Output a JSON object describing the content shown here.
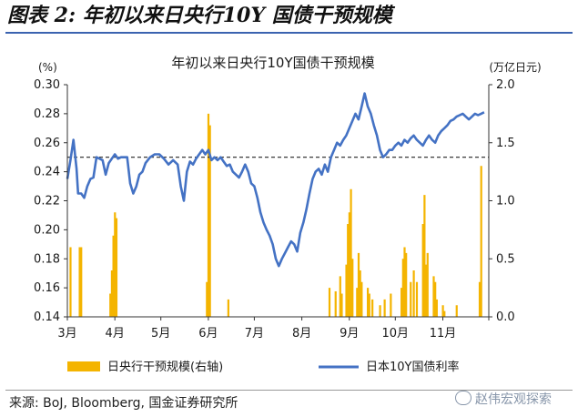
{
  "figure": {
    "title": "图表 2: 年初以来日央行10Y 国债干预规模",
    "source": "来源: BoJ, Bloomberg, 国金证券研究所",
    "watermark": "赵伟宏观探索"
  },
  "chart_data": {
    "type": "bar+line",
    "title": "年初以来日央行10Y国债干预规模",
    "left_unit": "(%)",
    "right_unit": "(万亿日元)",
    "x_tick_labels": [
      "3月",
      "4月",
      "5月",
      "6月",
      "7月",
      "8月",
      "9月",
      "10月",
      "11月"
    ],
    "left_axis": {
      "min": 0.14,
      "max": 0.3,
      "ticks": [
        "0.14",
        "0.16",
        "0.18",
        "0.20",
        "0.22",
        "0.24",
        "0.26",
        "0.28",
        "0.30"
      ]
    },
    "right_axis": {
      "min": 0.0,
      "max": 2.0,
      "ticks": [
        "0.0",
        "0.5",
        "1.0",
        "1.5",
        "2.0"
      ]
    },
    "reference_line": 0.25,
    "grid": false,
    "legend_position": "bottom",
    "colors": {
      "bar": "#f4b400",
      "line": "#4472c4",
      "reference": "#222222"
    },
    "bar_series": {
      "name": "日央行干预规模(右轴)",
      "axis": "right",
      "x": [
        "2021-03-03",
        "2021-03-09",
        "2021-03-10",
        "2021-03-29",
        "2021-03-30",
        "2021-03-31",
        "2021-04-01",
        "2021-04-02",
        "2021-05-31",
        "2021-06-01",
        "2021-06-02",
        "2021-06-14",
        "2021-08-19",
        "2021-08-23",
        "2021-08-26",
        "2021-08-27",
        "2021-08-30",
        "2021-08-31",
        "2021-09-01",
        "2021-09-02",
        "2021-09-03",
        "2021-09-06",
        "2021-09-07",
        "2021-09-08",
        "2021-09-09",
        "2021-09-13",
        "2021-09-14",
        "2021-09-16",
        "2021-09-21",
        "2021-09-24",
        "2021-09-28",
        "2021-10-05",
        "2021-10-06",
        "2021-10-07",
        "2021-10-08",
        "2021-10-11",
        "2021-10-13",
        "2021-10-15",
        "2021-10-19",
        "2021-10-20",
        "2021-10-21",
        "2021-10-22",
        "2021-10-26",
        "2021-10-27",
        "2021-10-28",
        "2021-11-01",
        "2021-11-02",
        "2021-11-10",
        "2021-11-25",
        "2021-11-26"
      ],
      "y": [
        0.6,
        0.6,
        0.6,
        0.2,
        0.4,
        0.7,
        0.9,
        0.85,
        0.3,
        1.75,
        1.65,
        0.15,
        0.25,
        0.22,
        0.35,
        0.2,
        0.45,
        0.8,
        0.9,
        1.1,
        0.5,
        0.25,
        0.55,
        0.4,
        0.3,
        0.25,
        0.2,
        0.15,
        0.1,
        0.15,
        0.2,
        0.25,
        0.5,
        0.6,
        0.55,
        0.3,
        0.4,
        0.3,
        0.8,
        1.05,
        0.45,
        0.55,
        0.35,
        0.3,
        0.15,
        0.1,
        0.05,
        0.1,
        0.3,
        1.3
      ]
    },
    "line_series": {
      "name": "日本10Y国债利率",
      "axis": "left",
      "points": [
        [
          "2021-03-01",
          0.235
        ],
        [
          "2021-03-03",
          0.248
        ],
        [
          "2021-03-05",
          0.262
        ],
        [
          "2021-03-07",
          0.242
        ],
        [
          "2021-03-08",
          0.225
        ],
        [
          "2021-03-10",
          0.225
        ],
        [
          "2021-03-12",
          0.222
        ],
        [
          "2021-03-14",
          0.23
        ],
        [
          "2021-03-16",
          0.235
        ],
        [
          "2021-03-18",
          0.236
        ],
        [
          "2021-03-20",
          0.25
        ],
        [
          "2021-03-22",
          0.249
        ],
        [
          "2021-03-24",
          0.248
        ],
        [
          "2021-03-26",
          0.238
        ],
        [
          "2021-03-28",
          0.246
        ],
        [
          "2021-03-30",
          0.249
        ],
        [
          "2021-04-01",
          0.252
        ],
        [
          "2021-04-03",
          0.249
        ],
        [
          "2021-04-05",
          0.25
        ],
        [
          "2021-04-07",
          0.25
        ],
        [
          "2021-04-09",
          0.25
        ],
        [
          "2021-04-11",
          0.232
        ],
        [
          "2021-04-13",
          0.225
        ],
        [
          "2021-04-15",
          0.23
        ],
        [
          "2021-04-17",
          0.238
        ],
        [
          "2021-04-19",
          0.24
        ],
        [
          "2021-04-21",
          0.246
        ],
        [
          "2021-04-24",
          0.25
        ],
        [
          "2021-04-27",
          0.252
        ],
        [
          "2021-04-30",
          0.252
        ],
        [
          "2021-05-03",
          0.249
        ],
        [
          "2021-05-06",
          0.245
        ],
        [
          "2021-05-09",
          0.248
        ],
        [
          "2021-05-12",
          0.245
        ],
        [
          "2021-05-14",
          0.23
        ],
        [
          "2021-05-16",
          0.22
        ],
        [
          "2021-05-18",
          0.24
        ],
        [
          "2021-05-20",
          0.247
        ],
        [
          "2021-05-22",
          0.245
        ],
        [
          "2021-05-24",
          0.249
        ],
        [
          "2021-05-26",
          0.252
        ],
        [
          "2021-05-28",
          0.255
        ],
        [
          "2021-05-30",
          0.252
        ],
        [
          "2021-06-01",
          0.255
        ],
        [
          "2021-06-03",
          0.248
        ],
        [
          "2021-06-05",
          0.25
        ],
        [
          "2021-06-07",
          0.248
        ],
        [
          "2021-06-09",
          0.25
        ],
        [
          "2021-06-11",
          0.247
        ],
        [
          "2021-06-13",
          0.244
        ],
        [
          "2021-06-15",
          0.245
        ],
        [
          "2021-06-17",
          0.24
        ],
        [
          "2021-06-19",
          0.238
        ],
        [
          "2021-06-21",
          0.236
        ],
        [
          "2021-06-23",
          0.24
        ],
        [
          "2021-06-25",
          0.245
        ],
        [
          "2021-06-27",
          0.24
        ],
        [
          "2021-06-29",
          0.232
        ],
        [
          "2021-07-01",
          0.23
        ],
        [
          "2021-07-03",
          0.222
        ],
        [
          "2021-07-05",
          0.212
        ],
        [
          "2021-07-07",
          0.205
        ],
        [
          "2021-07-09",
          0.2
        ],
        [
          "2021-07-11",
          0.196
        ],
        [
          "2021-07-13",
          0.19
        ],
        [
          "2021-07-15",
          0.18
        ],
        [
          "2021-07-17",
          0.175
        ],
        [
          "2021-07-19",
          0.18
        ],
        [
          "2021-07-21",
          0.184
        ],
        [
          "2021-07-23",
          0.188
        ],
        [
          "2021-07-25",
          0.192
        ],
        [
          "2021-07-27",
          0.19
        ],
        [
          "2021-07-29",
          0.185
        ],
        [
          "2021-07-31",
          0.198
        ],
        [
          "2021-08-02",
          0.205
        ],
        [
          "2021-08-04",
          0.214
        ],
        [
          "2021-08-06",
          0.225
        ],
        [
          "2021-08-08",
          0.235
        ],
        [
          "2021-08-10",
          0.24
        ],
        [
          "2021-08-12",
          0.242
        ],
        [
          "2021-08-14",
          0.238
        ],
        [
          "2021-08-16",
          0.245
        ],
        [
          "2021-08-18",
          0.24
        ],
        [
          "2021-08-20",
          0.25
        ],
        [
          "2021-08-22",
          0.255
        ],
        [
          "2021-08-24",
          0.26
        ],
        [
          "2021-08-26",
          0.258
        ],
        [
          "2021-08-28",
          0.262
        ],
        [
          "2021-08-30",
          0.265
        ],
        [
          "2021-09-01",
          0.27
        ],
        [
          "2021-09-03",
          0.275
        ],
        [
          "2021-09-05",
          0.28
        ],
        [
          "2021-09-07",
          0.276
        ],
        [
          "2021-09-09",
          0.285
        ],
        [
          "2021-09-11",
          0.294
        ],
        [
          "2021-09-13",
          0.285
        ],
        [
          "2021-09-15",
          0.28
        ],
        [
          "2021-09-17",
          0.272
        ],
        [
          "2021-09-19",
          0.265
        ],
        [
          "2021-09-21",
          0.255
        ],
        [
          "2021-09-23",
          0.25
        ],
        [
          "2021-09-25",
          0.252
        ],
        [
          "2021-09-27",
          0.255
        ],
        [
          "2021-09-29",
          0.255
        ],
        [
          "2021-10-01",
          0.258
        ],
        [
          "2021-10-03",
          0.26
        ],
        [
          "2021-10-05",
          0.258
        ],
        [
          "2021-10-07",
          0.262
        ],
        [
          "2021-10-09",
          0.26
        ],
        [
          "2021-10-11",
          0.263
        ],
        [
          "2021-10-13",
          0.265
        ],
        [
          "2021-10-15",
          0.262
        ],
        [
          "2021-10-17",
          0.26
        ],
        [
          "2021-10-19",
          0.258
        ],
        [
          "2021-10-21",
          0.262
        ],
        [
          "2021-10-23",
          0.265
        ],
        [
          "2021-10-25",
          0.262
        ],
        [
          "2021-10-27",
          0.26
        ],
        [
          "2021-10-29",
          0.265
        ],
        [
          "2021-10-31",
          0.268
        ],
        [
          "2021-11-02",
          0.27
        ],
        [
          "2021-11-04",
          0.272
        ],
        [
          "2021-11-06",
          0.275
        ],
        [
          "2021-11-08",
          0.276
        ],
        [
          "2021-11-10",
          0.278
        ],
        [
          "2021-11-12",
          0.279
        ],
        [
          "2021-11-14",
          0.28
        ],
        [
          "2021-11-16",
          0.278
        ],
        [
          "2021-11-18",
          0.276
        ],
        [
          "2021-11-20",
          0.278
        ],
        [
          "2021-11-22",
          0.28
        ],
        [
          "2021-11-24",
          0.279
        ],
        [
          "2021-11-26",
          0.28
        ],
        [
          "2021-11-28",
          0.281
        ]
      ]
    },
    "legend": [
      {
        "label": "日央行干预规模(右轴)",
        "kind": "bar"
      },
      {
        "label": "日本10Y国债利率",
        "kind": "line"
      }
    ]
  }
}
